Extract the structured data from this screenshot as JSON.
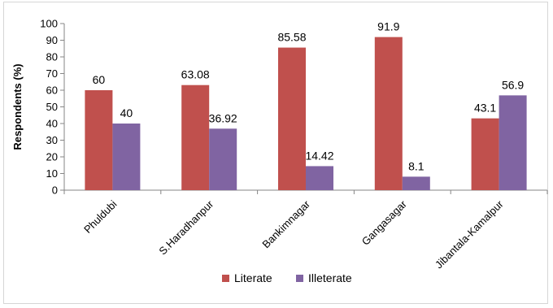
{
  "chart_data": {
    "type": "bar",
    "title": "",
    "xlabel": "",
    "ylabel": "Respondents (%)",
    "ylim": [
      0,
      100
    ],
    "yticks": [
      0,
      10,
      20,
      30,
      40,
      50,
      60,
      70,
      80,
      90,
      100
    ],
    "categories": [
      "Phuldubi",
      "S.Haradhanpur",
      "Bankimnagar",
      "Gangasagar",
      "Jibantala-Kamalpur"
    ],
    "series": [
      {
        "name": "Literate",
        "color": "#c0504d",
        "values": [
          60,
          63.08,
          85.58,
          91.9,
          43.1
        ]
      },
      {
        "name": "Illeterate",
        "color": "#8064a2",
        "values": [
          40,
          36.92,
          14.42,
          8.1,
          56.9
        ]
      }
    ],
    "grid": false,
    "legend": "bottom"
  }
}
